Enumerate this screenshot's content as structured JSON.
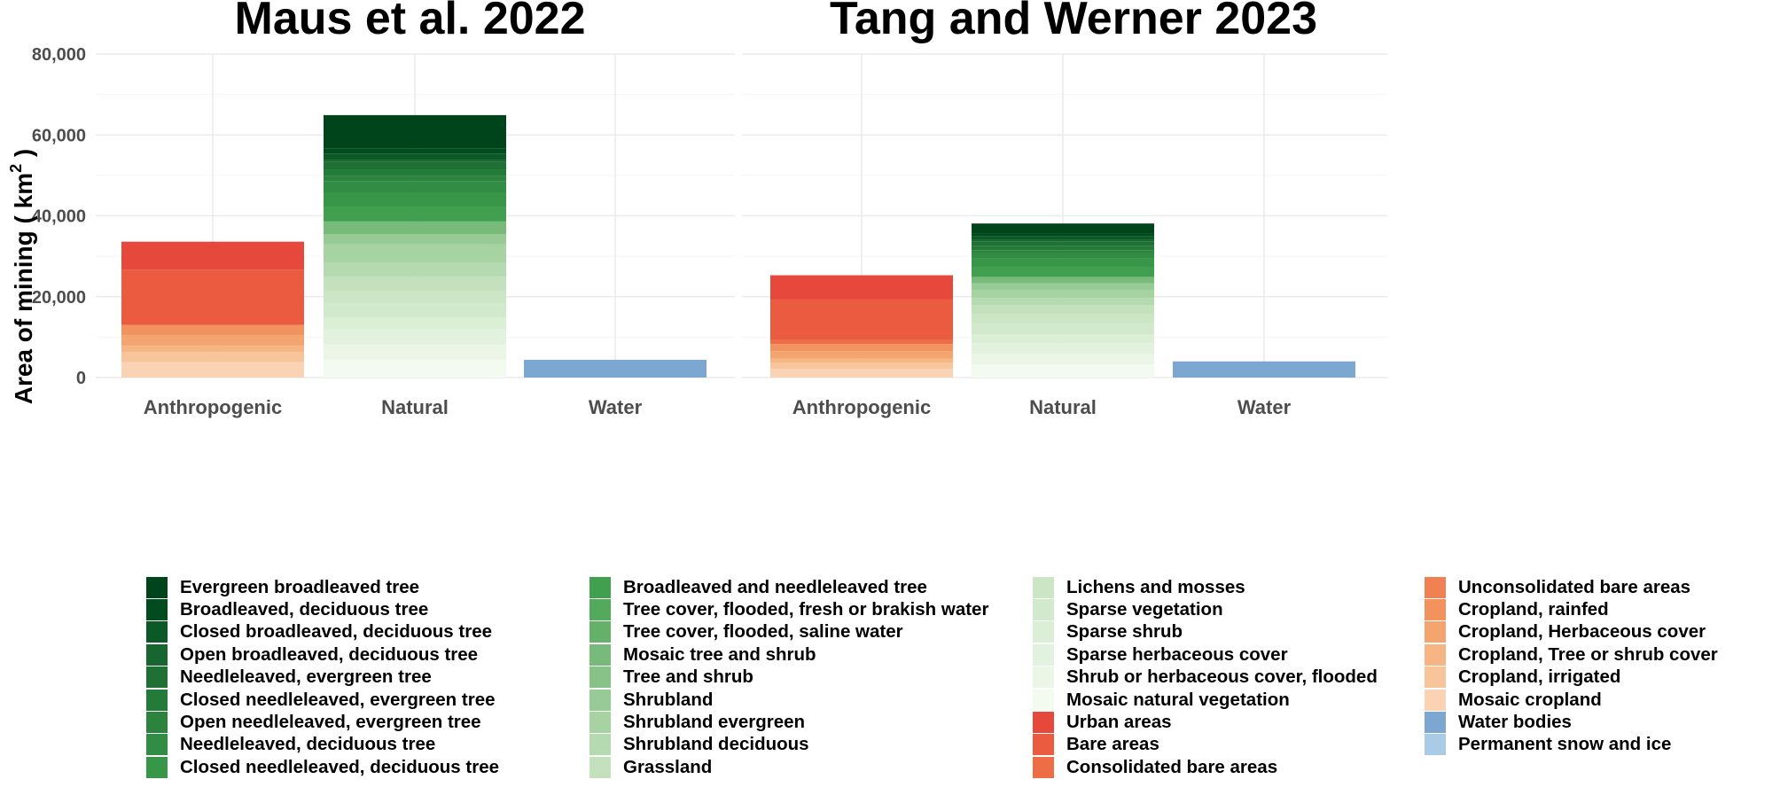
{
  "chart_data": {
    "type": "bar",
    "stacked": true,
    "ylabel": "Area of mining ( km",
    "ylabel_superscript": "2",
    "ylabel_close": " )",
    "ylim": [
      0,
      80000
    ],
    "yticks": [
      0,
      20000,
      40000,
      60000,
      80000
    ],
    "ytick_labels": [
      "0",
      "20,000",
      "40,000",
      "60,000",
      "80,000"
    ],
    "categories": [
      "Anthropogenic",
      "Natural",
      "Water"
    ],
    "legend_position": "bottom",
    "legend": [
      {
        "name": "Evergreen broadleaved tree",
        "color": "#00441b"
      },
      {
        "name": "Broadleaved, deciduous tree",
        "color": "#004c1f"
      },
      {
        "name": "Closed broadleaved, deciduous tree",
        "color": "#0b5927"
      },
      {
        "name": "Open broadleaved, deciduous tree",
        "color": "#17662f"
      },
      {
        "name": "Needleleaved, evergreen tree",
        "color": "#1e7034"
      },
      {
        "name": "Closed needleleaved, evergreen tree",
        "color": "#247a39"
      },
      {
        "name": "Open needleleaved, evergreen tree",
        "color": "#2b833e"
      },
      {
        "name": "Needleleaved, deciduous tree",
        "color": "#318d43"
      },
      {
        "name": "Closed needleleaved, deciduous tree",
        "color": "#379648"
      },
      {
        "name": "Broadleaved and needleleaved tree",
        "color": "#41a04f"
      },
      {
        "name": "Tree cover, flooded, fresh or brakish water",
        "color": "#53a95c"
      },
      {
        "name": "Tree cover, flooded, saline water",
        "color": "#66b16a"
      },
      {
        "name": "Mosaic tree and shrub",
        "color": "#78ba79"
      },
      {
        "name": "Tree and shrub",
        "color": "#89c287"
      },
      {
        "name": "Shrubland",
        "color": "#98ca95"
      },
      {
        "name": "Shrubland evergreen",
        "color": "#a7d2a2"
      },
      {
        "name": "Shrubland deciduous",
        "color": "#b5d9b0"
      },
      {
        "name": "Grassland",
        "color": "#c3e1bd"
      },
      {
        "name": "Lichens and mosses",
        "color": "#cbe5c5"
      },
      {
        "name": "Sparse vegetation",
        "color": "#d3e9cd"
      },
      {
        "name": "Sparse shrub",
        "color": "#dbeed6"
      },
      {
        "name": "Sparse herbaceous cover",
        "color": "#e3f2de"
      },
      {
        "name": "Shrub or herbaceous cover, flooded",
        "color": "#ebf6e7"
      },
      {
        "name": "Mosaic natural vegetation",
        "color": "#f3faf0"
      },
      {
        "name": "Urban areas",
        "color": "#e6493b"
      },
      {
        "name": "Bare areas",
        "color": "#ea5b3f"
      },
      {
        "name": "Consolidated bare areas",
        "color": "#ed6d46"
      },
      {
        "name": "Unconsolidated bare areas",
        "color": "#f08152"
      },
      {
        "name": "Cropland, rainfed",
        "color": "#f2935f"
      },
      {
        "name": "Cropland, Herbaceous cover",
        "color": "#f4a56f"
      },
      {
        "name": "Cropland, Tree or shrub cover",
        "color": "#f6b582"
      },
      {
        "name": "Cropland, irrigated",
        "color": "#f8c49a"
      },
      {
        "name": "Mosaic cropland",
        "color": "#fad3b4"
      },
      {
        "name": "Water bodies",
        "color": "#7ba7d1"
      },
      {
        "name": "Permanent snow and ice",
        "color": "#a9cbe6"
      }
    ],
    "panels": [
      {
        "title": "Maus et al. 2022",
        "stacks": [
          {
            "category": "Anthropogenic",
            "segments": [
              {
                "name": "Mosaic cropland",
                "value": 3800
              },
              {
                "name": "Cropland, irrigated",
                "value": 2500
              },
              {
                "name": "Cropland, Tree or shrub cover",
                "value": 1700
              },
              {
                "name": "Cropland, Herbaceous cover",
                "value": 2500
              },
              {
                "name": "Cropland, rainfed",
                "value": 2500
              },
              {
                "name": "Bare areas",
                "value": 13700
              },
              {
                "name": "Urban areas",
                "value": 6900
              }
            ]
          },
          {
            "category": "Natural",
            "segments": [
              {
                "name": "Mosaic natural vegetation",
                "value": 4500
              },
              {
                "name": "Shrub or herbaceous cover, flooded",
                "value": 3700
              },
              {
                "name": "Sparse herbaceous cover",
                "value": 3700
              },
              {
                "name": "Sparse shrub",
                "value": 3000
              },
              {
                "name": "Sparse vegetation",
                "value": 3500
              },
              {
                "name": "Lichens and mosses",
                "value": 3000
              },
              {
                "name": "Grassland",
                "value": 3600
              },
              {
                "name": "Shrubland deciduous",
                "value": 3500
              },
              {
                "name": "Shrubland evergreen",
                "value": 4500
              },
              {
                "name": "Shrubland",
                "value": 2500
              },
              {
                "name": "Mosaic tree and shrub",
                "value": 3100
              },
              {
                "name": "Broadleaved and needleleaved tree",
                "value": 3500
              },
              {
                "name": "Closed needleleaved, deciduous tree",
                "value": 3500
              },
              {
                "name": "Needleleaved, deciduous tree",
                "value": 3000
              },
              {
                "name": "Open needleleaved, evergreen tree",
                "value": 1200
              },
              {
                "name": "Closed needleleaved, evergreen tree",
                "value": 1700
              },
              {
                "name": "Needleleaved, evergreen tree",
                "value": 1900
              },
              {
                "name": "Open broadleaved, deciduous tree",
                "value": 500
              },
              {
                "name": "Closed broadleaved, deciduous tree",
                "value": 1500
              },
              {
                "name": "Broadleaved, deciduous tree",
                "value": 1300
              },
              {
                "name": "Evergreen broadleaved tree",
                "value": 8200
              }
            ]
          },
          {
            "category": "Water",
            "segments": [
              {
                "name": "Water bodies",
                "value": 4400
              }
            ]
          }
        ]
      },
      {
        "title": "Tang and Werner 2023",
        "stacks": [
          {
            "category": "Anthropogenic",
            "segments": [
              {
                "name": "Mosaic cropland",
                "value": 2200
              },
              {
                "name": "Cropland, irrigated",
                "value": 1500
              },
              {
                "name": "Cropland, Tree or shrub cover",
                "value": 1000
              },
              {
                "name": "Cropland, Herbaceous cover",
                "value": 1800
              },
              {
                "name": "Cropland, rainfed",
                "value": 1800
              },
              {
                "name": "Consolidated bare areas",
                "value": 1000
              },
              {
                "name": "Bare areas",
                "value": 10000
              },
              {
                "name": "Urban areas",
                "value": 6000
              }
            ]
          },
          {
            "category": "Natural",
            "segments": [
              {
                "name": "Mosaic natural vegetation",
                "value": 3200
              },
              {
                "name": "Shrub or herbaceous cover, flooded",
                "value": 2700
              },
              {
                "name": "Sparse herbaceous cover",
                "value": 2600
              },
              {
                "name": "Sparse shrub",
                "value": 2200
              },
              {
                "name": "Sparse vegetation",
                "value": 2700
              },
              {
                "name": "Lichens and mosses",
                "value": 2200
              },
              {
                "name": "Grassland",
                "value": 2300
              },
              {
                "name": "Shrubland deciduous",
                "value": 1800
              },
              {
                "name": "Shrubland evergreen",
                "value": 2000
              },
              {
                "name": "Shrubland",
                "value": 1600
              },
              {
                "name": "Mosaic tree and shrub",
                "value": 1600
              },
              {
                "name": "Broadleaved and needleleaved tree",
                "value": 2500
              },
              {
                "name": "Closed needleleaved, deciduous tree",
                "value": 2000
              },
              {
                "name": "Needleleaved, deciduous tree",
                "value": 1400
              },
              {
                "name": "Open needleleaved, evergreen tree",
                "value": 700
              },
              {
                "name": "Closed needleleaved, evergreen tree",
                "value": 1000
              },
              {
                "name": "Needleleaved, evergreen tree",
                "value": 1200
              },
              {
                "name": "Open broadleaved, deciduous tree",
                "value": 400
              },
              {
                "name": "Closed broadleaved, deciduous tree",
                "value": 800
              },
              {
                "name": "Broadleaved, deciduous tree",
                "value": 700
              },
              {
                "name": "Evergreen broadleaved tree",
                "value": 2500
              }
            ]
          },
          {
            "category": "Water",
            "segments": [
              {
                "name": "Water bodies",
                "value": 4000
              }
            ]
          }
        ]
      }
    ]
  }
}
